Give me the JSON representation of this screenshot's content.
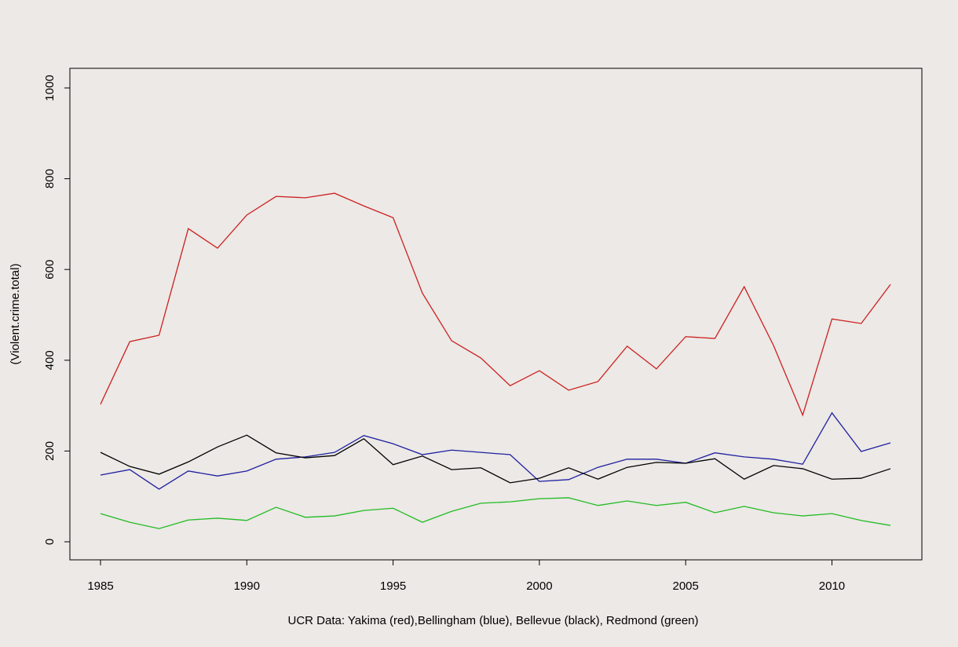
{
  "chart_data": {
    "type": "line",
    "title": "",
    "xlabel": "UCR Data: Yakima (red),Bellingham (blue), Bellevue (black), Redmond (green)",
    "ylabel": "(Violent.crime.total)",
    "xlim": [
      1985,
      2012
    ],
    "ylim": [
      0,
      1000
    ],
    "xticks": [
      1985,
      1990,
      1995,
      2000,
      2005,
      2010
    ],
    "yticks": [
      0,
      200,
      400,
      600,
      800,
      1000
    ],
    "grid": false,
    "x": [
      1985,
      1986,
      1987,
      1988,
      1989,
      1990,
      1991,
      1992,
      1993,
      1994,
      1995,
      1996,
      1997,
      1998,
      1999,
      2000,
      2001,
      2002,
      2003,
      2004,
      2005,
      2006,
      2007,
      2008,
      2009,
      2010,
      2011,
      2012
    ],
    "series": [
      {
        "name": "Yakima",
        "color": "#cc1f1f",
        "values": [
          303,
          441,
          455,
          690,
          647,
          720,
          761,
          758,
          768,
          740,
          714,
          548,
          443,
          405,
          344,
          377,
          334,
          353,
          431,
          381,
          452,
          448,
          562,
          433,
          279,
          491,
          481,
          567
        ]
      },
      {
        "name": "Bellingham",
        "color": "#1f1fa0",
        "values": [
          147,
          159,
          116,
          156,
          145,
          156,
          182,
          187,
          197,
          234,
          216,
          192,
          202,
          197,
          192,
          133,
          137,
          164,
          182,
          182,
          173,
          196,
          187,
          182,
          171,
          284,
          199,
          218
        ]
      },
      {
        "name": "Bellevue",
        "color": "#000000",
        "values": [
          197,
          166,
          149,
          176,
          209,
          235,
          196,
          185,
          190,
          227,
          170,
          189,
          159,
          163,
          130,
          140,
          163,
          138,
          164,
          175,
          173,
          183,
          138,
          168,
          161,
          138,
          140,
          161
        ]
      },
      {
        "name": "Redmond",
        "color": "#22bb22",
        "values": [
          62,
          43,
          29,
          48,
          52,
          47,
          76,
          54,
          57,
          69,
          74,
          43,
          67,
          85,
          88,
          95,
          97,
          80,
          90,
          80,
          87,
          64,
          78,
          64,
          57,
          62,
          47,
          36
        ]
      }
    ]
  }
}
